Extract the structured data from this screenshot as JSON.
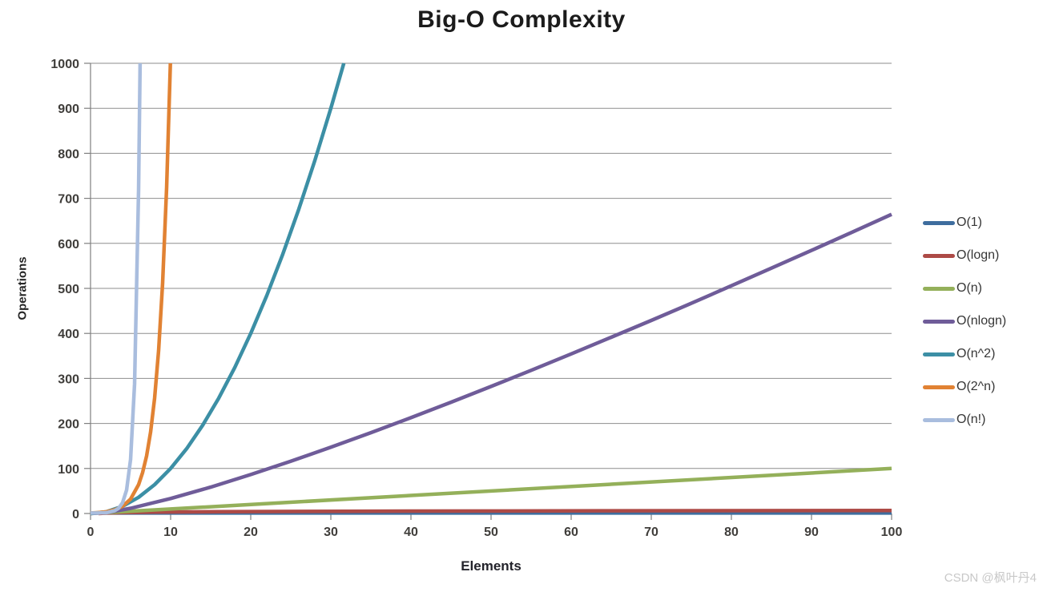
{
  "watermark": {
    "text": "CSDN @枫叶丹4",
    "color": "#C8C8C8"
  },
  "chart_data": {
    "type": "line",
    "title": "Big-O Complexity",
    "xlabel": "Elements",
    "ylabel": "Operations",
    "xlim": [
      0,
      100
    ],
    "ylim": [
      0,
      1000
    ],
    "x_ticks": [
      0,
      10,
      20,
      30,
      40,
      50,
      60,
      70,
      80,
      90,
      100
    ],
    "y_ticks": [
      0,
      100,
      200,
      300,
      400,
      500,
      600,
      700,
      800,
      900,
      1000
    ],
    "grid": "horizontal",
    "legend_position": "right",
    "colors": {
      "grid": "#8e8e8e",
      "axis": "#7f7f7f",
      "tick_label": "#3f3d3a",
      "title": "#1b1b1b"
    },
    "series": [
      {
        "name": "O(1)",
        "color": "#3e6d9e",
        "points": [
          [
            0,
            1
          ],
          [
            100,
            1
          ]
        ]
      },
      {
        "name": "O(logn)",
        "color": "#ad4a46",
        "points": [
          [
            1,
            0
          ],
          [
            2,
            1
          ],
          [
            4,
            2
          ],
          [
            8,
            3
          ],
          [
            16,
            4
          ],
          [
            32,
            5
          ],
          [
            64,
            6
          ],
          [
            100,
            6.64
          ]
        ]
      },
      {
        "name": "O(n)",
        "color": "#94b05a",
        "points": [
          [
            0,
            0
          ],
          [
            100,
            100
          ]
        ]
      },
      {
        "name": "O(nlogn)",
        "color": "#6f5c99",
        "points": [
          [
            0,
            0
          ],
          [
            2,
            2
          ],
          [
            5,
            11.6
          ],
          [
            10,
            33.2
          ],
          [
            15,
            58.6
          ],
          [
            20,
            86.4
          ],
          [
            25,
            116.1
          ],
          [
            30,
            147.2
          ],
          [
            35,
            179.5
          ],
          [
            40,
            212.9
          ],
          [
            45,
            247.2
          ],
          [
            50,
            282.2
          ],
          [
            55,
            318.0
          ],
          [
            60,
            354.4
          ],
          [
            65,
            391.4
          ],
          [
            70,
            428.9
          ],
          [
            75,
            466.9
          ],
          [
            80,
            505.8
          ],
          [
            85,
            545.0
          ],
          [
            90,
            584.3
          ],
          [
            95,
            624.2
          ],
          [
            100,
            664.4
          ]
        ]
      },
      {
        "name": "O(n^2)",
        "color": "#3c8fa5",
        "points": [
          [
            0,
            0
          ],
          [
            2,
            4
          ],
          [
            4,
            16
          ],
          [
            6,
            36
          ],
          [
            8,
            64
          ],
          [
            10,
            100
          ],
          [
            12,
            144
          ],
          [
            14,
            196
          ],
          [
            16,
            256
          ],
          [
            18,
            324
          ],
          [
            20,
            400
          ],
          [
            22,
            484
          ],
          [
            24,
            576
          ],
          [
            26,
            676
          ],
          [
            28,
            784
          ],
          [
            30,
            900
          ],
          [
            31.62,
            1000
          ]
        ]
      },
      {
        "name": "O(2^n)",
        "color": "#e18233",
        "points": [
          [
            0,
            1
          ],
          [
            1,
            2
          ],
          [
            2,
            4
          ],
          [
            3,
            8
          ],
          [
            4,
            16
          ],
          [
            5,
            32
          ],
          [
            6,
            64
          ],
          [
            6.5,
            91
          ],
          [
            7,
            128
          ],
          [
            7.5,
            181
          ],
          [
            8,
            256
          ],
          [
            8.5,
            362
          ],
          [
            9,
            512
          ],
          [
            9.5,
            724
          ],
          [
            9.97,
            1000
          ]
        ]
      },
      {
        "name": "O(n!)",
        "color": "#a9bdde",
        "points": [
          [
            0,
            1
          ],
          [
            1,
            1
          ],
          [
            2,
            2
          ],
          [
            3,
            6
          ],
          [
            3.5,
            11.6
          ],
          [
            4,
            24
          ],
          [
            4.5,
            52
          ],
          [
            5,
            120
          ],
          [
            5.5,
            288
          ],
          [
            6,
            720
          ],
          [
            6.19,
            1000
          ]
        ]
      }
    ]
  }
}
